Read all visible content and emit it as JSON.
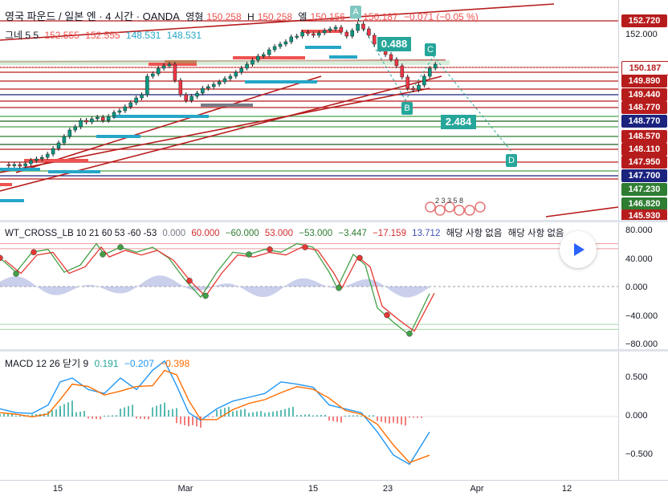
{
  "header": {
    "symbol": "영국 파운드 / 일본 엔 · 4 시간 · OANDA",
    "o_label": "영형",
    "o_value": "150.258",
    "h_label": "H",
    "h_value": "150.258",
    "l_label": "엘",
    "l_value": "150.156",
    "c_label": "씨",
    "c_value": "150.187",
    "change": "−0.071 (−0.05 %)"
  },
  "indicator_gn": {
    "name": "그네 5 5",
    "v1": "152.555",
    "v2": "152.555",
    "v3": "148.531",
    "v4": "148.531"
  },
  "annotations": {
    "box1": "0.488",
    "box2": "2.484",
    "pt_a": "A",
    "pt_b": "B",
    "pt_c": "C",
    "pt_d": "D",
    "wave_nums": "2 3 3 5 8"
  },
  "price_scale": {
    "labels": [
      {
        "text": "152.720",
        "color": "#b71c1c"
      },
      {
        "text": "150.187",
        "color": "#ffffff",
        "fg": "#b71c1c"
      },
      {
        "text": "149.890",
        "color": "#b71c1c"
      },
      {
        "text": "149.440",
        "color": "#b71c1c"
      },
      {
        "text": "148.770",
        "color": "#b71c1c"
      },
      {
        "text": "148.770",
        "color": "#1a237e"
      },
      {
        "text": "148.570",
        "color": "#b71c1c"
      },
      {
        "text": "148.110",
        "color": "#b71c1c"
      },
      {
        "text": "147.950",
        "color": "#b71c1c"
      },
      {
        "text": "147.700",
        "color": "#1a237e"
      },
      {
        "text": "147.230",
        "color": "#2e7d32"
      },
      {
        "text": "146.820",
        "color": "#2e7d32"
      },
      {
        "text": "145.930",
        "color": "#b71c1c"
      }
    ],
    "tick_152": "152.000"
  },
  "wt": {
    "name": "WT_CROSS_LB 10 21 60 53 -60 -53",
    "v0": "0.000",
    "v1": "60.000",
    "v2": "−60.000",
    "v3": "53.000",
    "v4": "−53.000",
    "v5": "−3.447",
    "v6": "−17.159",
    "v7": "13.712",
    "na1": "해당 사항 없음",
    "na2": "해당 사항 없음",
    "ticks": [
      "80.000",
      "40.000",
      "0.000",
      "−40.000",
      "−80.000"
    ]
  },
  "macd": {
    "name": "MACD 12 26 닫기 9",
    "v1": "0.191",
    "v2": "−0.207",
    "v3": "−0.398",
    "ticks": [
      "0.500",
      "0.000",
      "−0.500"
    ]
  },
  "time_axis": [
    "15",
    "Mar",
    "15",
    "23",
    "Apr",
    "12"
  ],
  "colors": {
    "bull": "#26a69a",
    "bear": "#ef5350",
    "macd": "#2196f3",
    "signal": "#ff6d00"
  }
}
